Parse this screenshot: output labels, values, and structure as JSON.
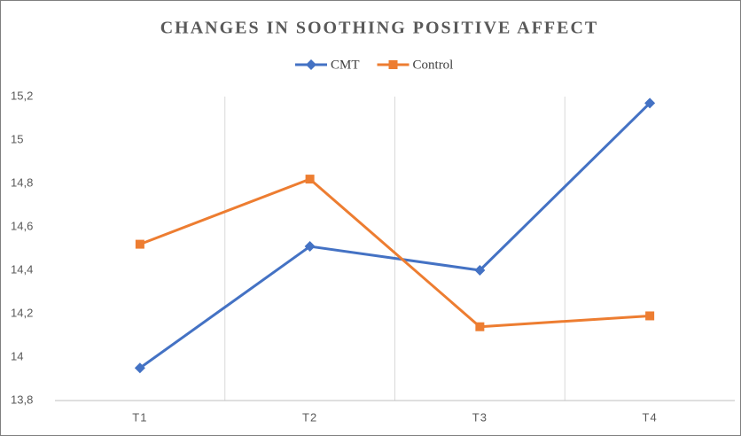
{
  "chart_data": {
    "type": "line",
    "title": "CHANGES IN SOOTHING POSITIVE AFFECT",
    "categories": [
      "T1",
      "T2",
      "T3",
      "T4"
    ],
    "series": [
      {
        "name": "CMT",
        "color": "#4472c4",
        "marker": "diamond",
        "values": [
          13.95,
          14.51,
          14.4,
          15.17
        ]
      },
      {
        "name": "Control",
        "color": "#ed7d31",
        "marker": "square",
        "values": [
          14.52,
          14.82,
          14.14,
          14.19
        ]
      }
    ],
    "ylim": [
      13.8,
      15.2
    ],
    "yticks": [
      {
        "value": 13.8,
        "label": "13,8"
      },
      14,
      {
        "value": 14.2,
        "label": "14,2"
      },
      {
        "value": 14.4,
        "label": "14,4"
      },
      {
        "value": 14.6,
        "label": "14,6"
      },
      {
        "value": 14.8,
        "label": "14,8"
      },
      15,
      {
        "value": 15.2,
        "label": "15,2"
      }
    ],
    "grid": "vertical",
    "legend": "top"
  }
}
